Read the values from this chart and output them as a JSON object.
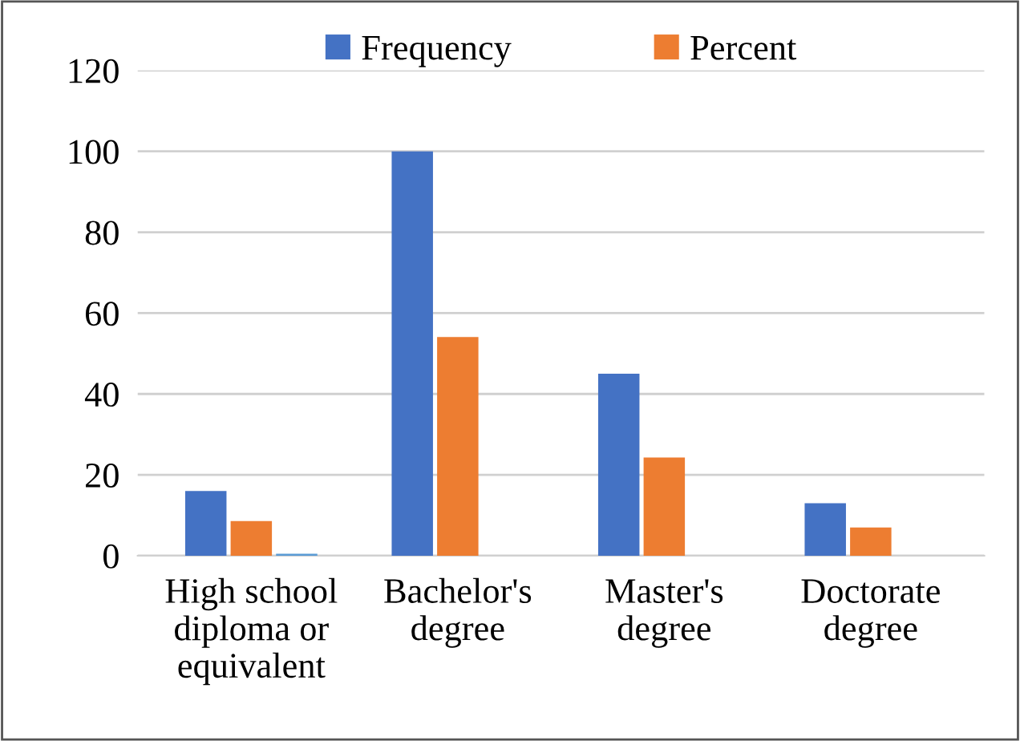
{
  "chart_data": {
    "type": "bar",
    "categories": [
      "High school\ndiploma or\nequivalent",
      "Bachelor's\ndegree",
      "Master's\ndegree",
      "Doctorate\ndegree"
    ],
    "series": [
      {
        "name": "Frequency",
        "color": "#4472c4",
        "values": [
          16,
          100,
          45,
          13
        ]
      },
      {
        "name": "Percent",
        "color": "#ed7d31",
        "values": [
          8.6,
          54.1,
          24.3,
          7.0
        ]
      },
      {
        "color": "#5b9bd5",
        "values": [
          0.5,
          null,
          null,
          null
        ]
      }
    ],
    "ylim": [
      0,
      120
    ],
    "yticks": [
      0,
      20,
      40,
      60,
      80,
      100,
      120
    ],
    "grid": "y",
    "legend": "top"
  }
}
